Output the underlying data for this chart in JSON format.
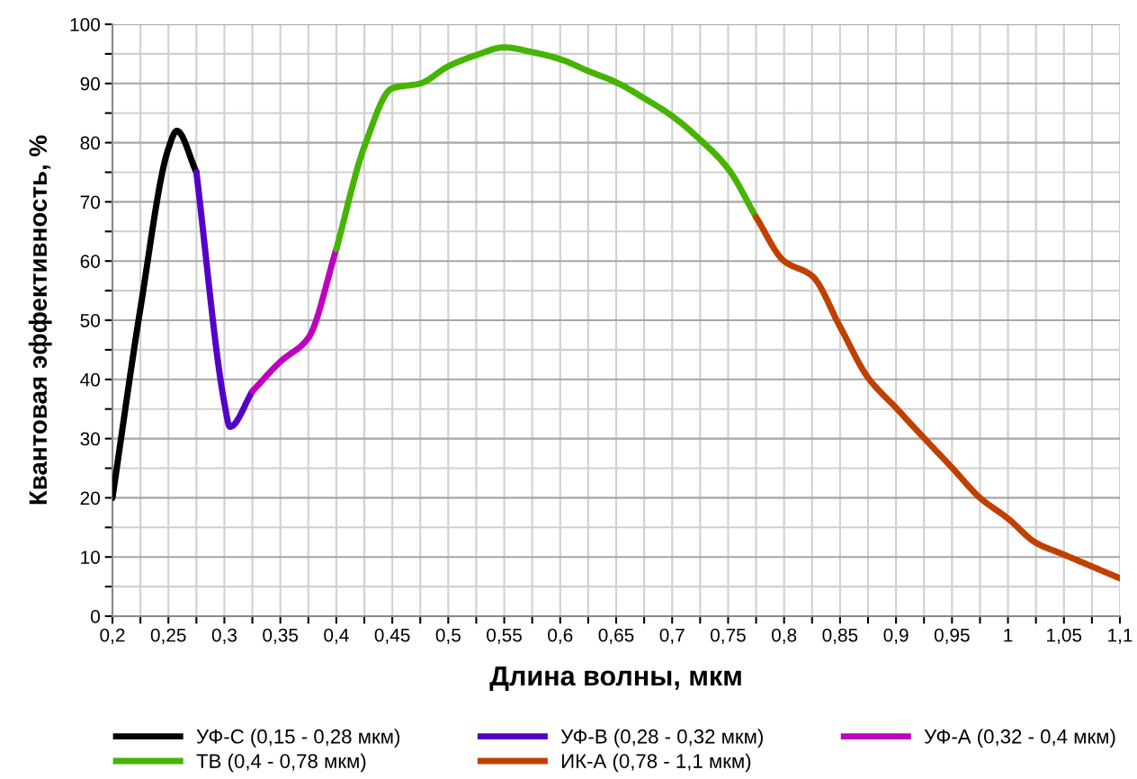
{
  "chart_data": {
    "type": "line",
    "xlabel": "Длина волны, мкм",
    "ylabel": "Квантовая эффективность, %",
    "xlim": [
      0.2,
      1.1
    ],
    "ylim": [
      0,
      100
    ],
    "xticks": [
      {
        "value": 0.2,
        "label": "0,2"
      },
      {
        "value": 0.225,
        "label": null
      },
      {
        "value": 0.25,
        "label": "0,25"
      },
      {
        "value": 0.275,
        "label": null
      },
      {
        "value": 0.3,
        "label": "0,3"
      },
      {
        "value": 0.325,
        "label": null
      },
      {
        "value": 0.35,
        "label": "0,35"
      },
      {
        "value": 0.375,
        "label": null
      },
      {
        "value": 0.4,
        "label": "0,4"
      },
      {
        "value": 0.425,
        "label": null
      },
      {
        "value": 0.45,
        "label": "0,45"
      },
      {
        "value": 0.475,
        "label": null
      },
      {
        "value": 0.5,
        "label": "0,5"
      },
      {
        "value": 0.525,
        "label": null
      },
      {
        "value": 0.55,
        "label": "0,55"
      },
      {
        "value": 0.575,
        "label": null
      },
      {
        "value": 0.6,
        "label": "0,6"
      },
      {
        "value": 0.625,
        "label": null
      },
      {
        "value": 0.65,
        "label": "0,65"
      },
      {
        "value": 0.675,
        "label": null
      },
      {
        "value": 0.7,
        "label": "0,7"
      },
      {
        "value": 0.725,
        "label": null
      },
      {
        "value": 0.75,
        "label": "0,75"
      },
      {
        "value": 0.775,
        "label": null
      },
      {
        "value": 0.8,
        "label": "0,8"
      },
      {
        "value": 0.825,
        "label": null
      },
      {
        "value": 0.85,
        "label": "0,85"
      },
      {
        "value": 0.875,
        "label": null
      },
      {
        "value": 0.9,
        "label": "0,9"
      },
      {
        "value": 0.925,
        "label": null
      },
      {
        "value": 0.95,
        "label": "0,95"
      },
      {
        "value": 0.975,
        "label": null
      },
      {
        "value": 1.0,
        "label": "1"
      },
      {
        "value": 1.025,
        "label": null
      },
      {
        "value": 1.05,
        "label": "1,05"
      },
      {
        "value": 1.075,
        "label": null
      },
      {
        "value": 1.1,
        "label": "1,1"
      }
    ],
    "yticks": [
      0,
      {
        "value": 5,
        "label": null
      },
      10,
      {
        "value": 15,
        "label": null
      },
      20,
      {
        "value": 25,
        "label": null
      },
      30,
      {
        "value": 35,
        "label": null
      },
      40,
      {
        "value": 45,
        "label": null
      },
      50,
      {
        "value": 55,
        "label": null
      },
      60,
      {
        "value": 65,
        "label": null
      },
      70,
      {
        "value": 75,
        "label": null
      },
      80,
      {
        "value": 85,
        "label": null
      },
      90,
      {
        "value": 95,
        "label": null
      },
      100
    ],
    "grid": true,
    "legend": "bottom",
    "marker": "none",
    "line_style": "solid",
    "series": [
      {
        "name": "УФ-С (0,15 - 0,28 мкм)",
        "color": "#000000",
        "x": [
          0.2,
          0.225,
          0.25,
          0.2575,
          0.275
        ],
        "values": [
          20,
          52,
          79,
          82,
          75
        ]
      },
      {
        "name": "УФ-В (0,28 - 0,32 мкм)",
        "color": "#5500c8",
        "x": [
          0.275,
          0.3,
          0.305,
          0.325
        ],
        "values": [
          75,
          36,
          32,
          38
        ]
      },
      {
        "name": "УФ-А (0,32 - 0,4 мкм)",
        "color": "#c000c0",
        "x": [
          0.325,
          0.35,
          0.375,
          0.4
        ],
        "values": [
          38,
          43,
          47,
          62
        ]
      },
      {
        "name": "ТВ (0,4 - 0,78 мкм)",
        "color": "#46b400",
        "x": [
          0.4,
          0.425,
          0.45,
          0.475,
          0.5,
          0.525,
          0.55,
          0.575,
          0.6,
          0.625,
          0.65,
          0.675,
          0.7,
          0.725,
          0.75,
          0.775
        ],
        "values": [
          62,
          79.3,
          89.2,
          90,
          92.9,
          94.8,
          96.1,
          95.3,
          94.1,
          92.1,
          90.2,
          87.5,
          84.5,
          80.5,
          75.6,
          67.4
        ]
      },
      {
        "name": "ИК-А (0,78 - 1,1 мкм)",
        "color": "#c04000",
        "x": [
          0.775,
          0.8,
          0.825,
          0.85,
          0.875,
          0.9,
          0.925,
          0.95,
          0.975,
          1.0,
          1.025,
          1.05,
          1.075,
          1.1
        ],
        "values": [
          67.4,
          60,
          57.5,
          48.9,
          40.3,
          35.2,
          30.1,
          25.1,
          20,
          16.5,
          12.4,
          10.4,
          8.4,
          6.4
        ]
      }
    ]
  }
}
